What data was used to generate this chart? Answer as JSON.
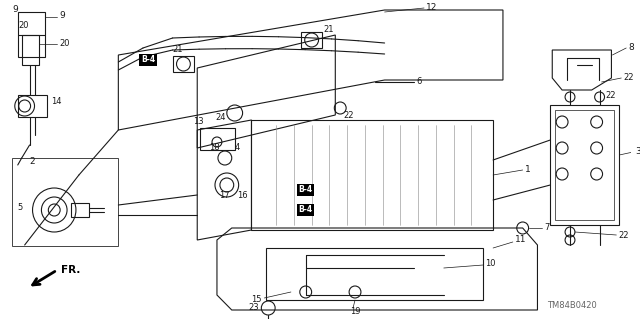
{
  "bg_color": "#ffffff",
  "lc": "#1a1a1a",
  "figsize": [
    6.4,
    3.19
  ],
  "dpi": 100,
  "watermark": "TM84B0420",
  "direction_label": "FR."
}
